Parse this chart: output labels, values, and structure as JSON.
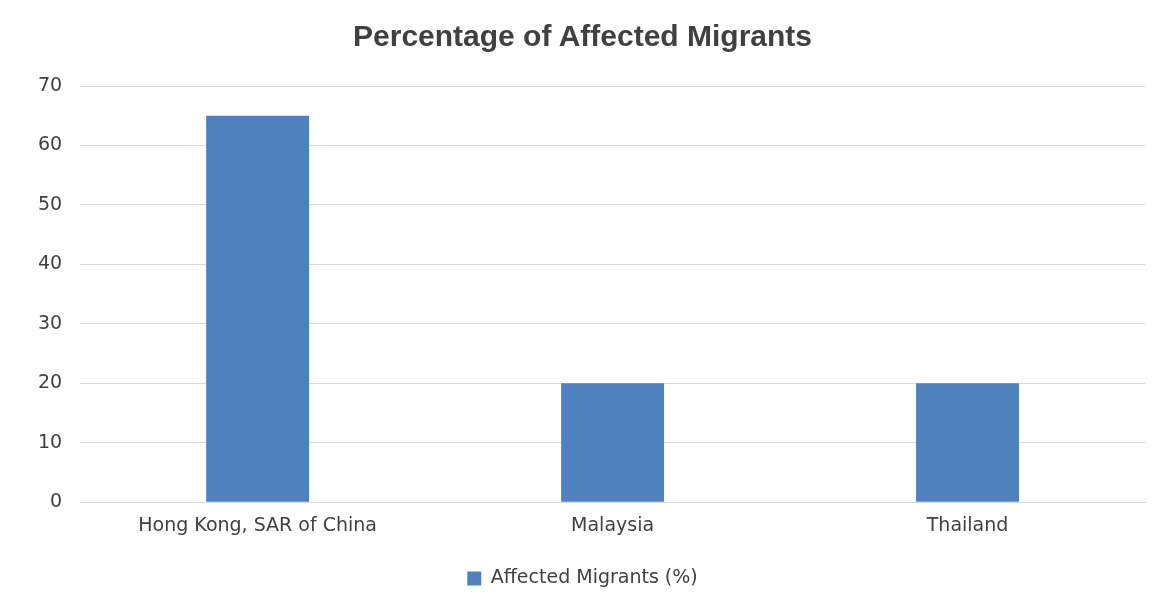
{
  "chart_data": {
    "type": "bar",
    "title": "Percentage of Affected Migrants",
    "categories": [
      "Hong Kong, SAR of China",
      "Malaysia",
      "Thailand"
    ],
    "series": [
      {
        "name": "Affected Migrants (%)",
        "color": "#4f81bd",
        "values": [
          65,
          20,
          20
        ]
      }
    ],
    "ylim": [
      0,
      70
    ],
    "yticks": [
      0,
      10,
      20,
      30,
      40,
      50,
      60,
      70
    ],
    "grid": "y",
    "legend": "bottom"
  }
}
